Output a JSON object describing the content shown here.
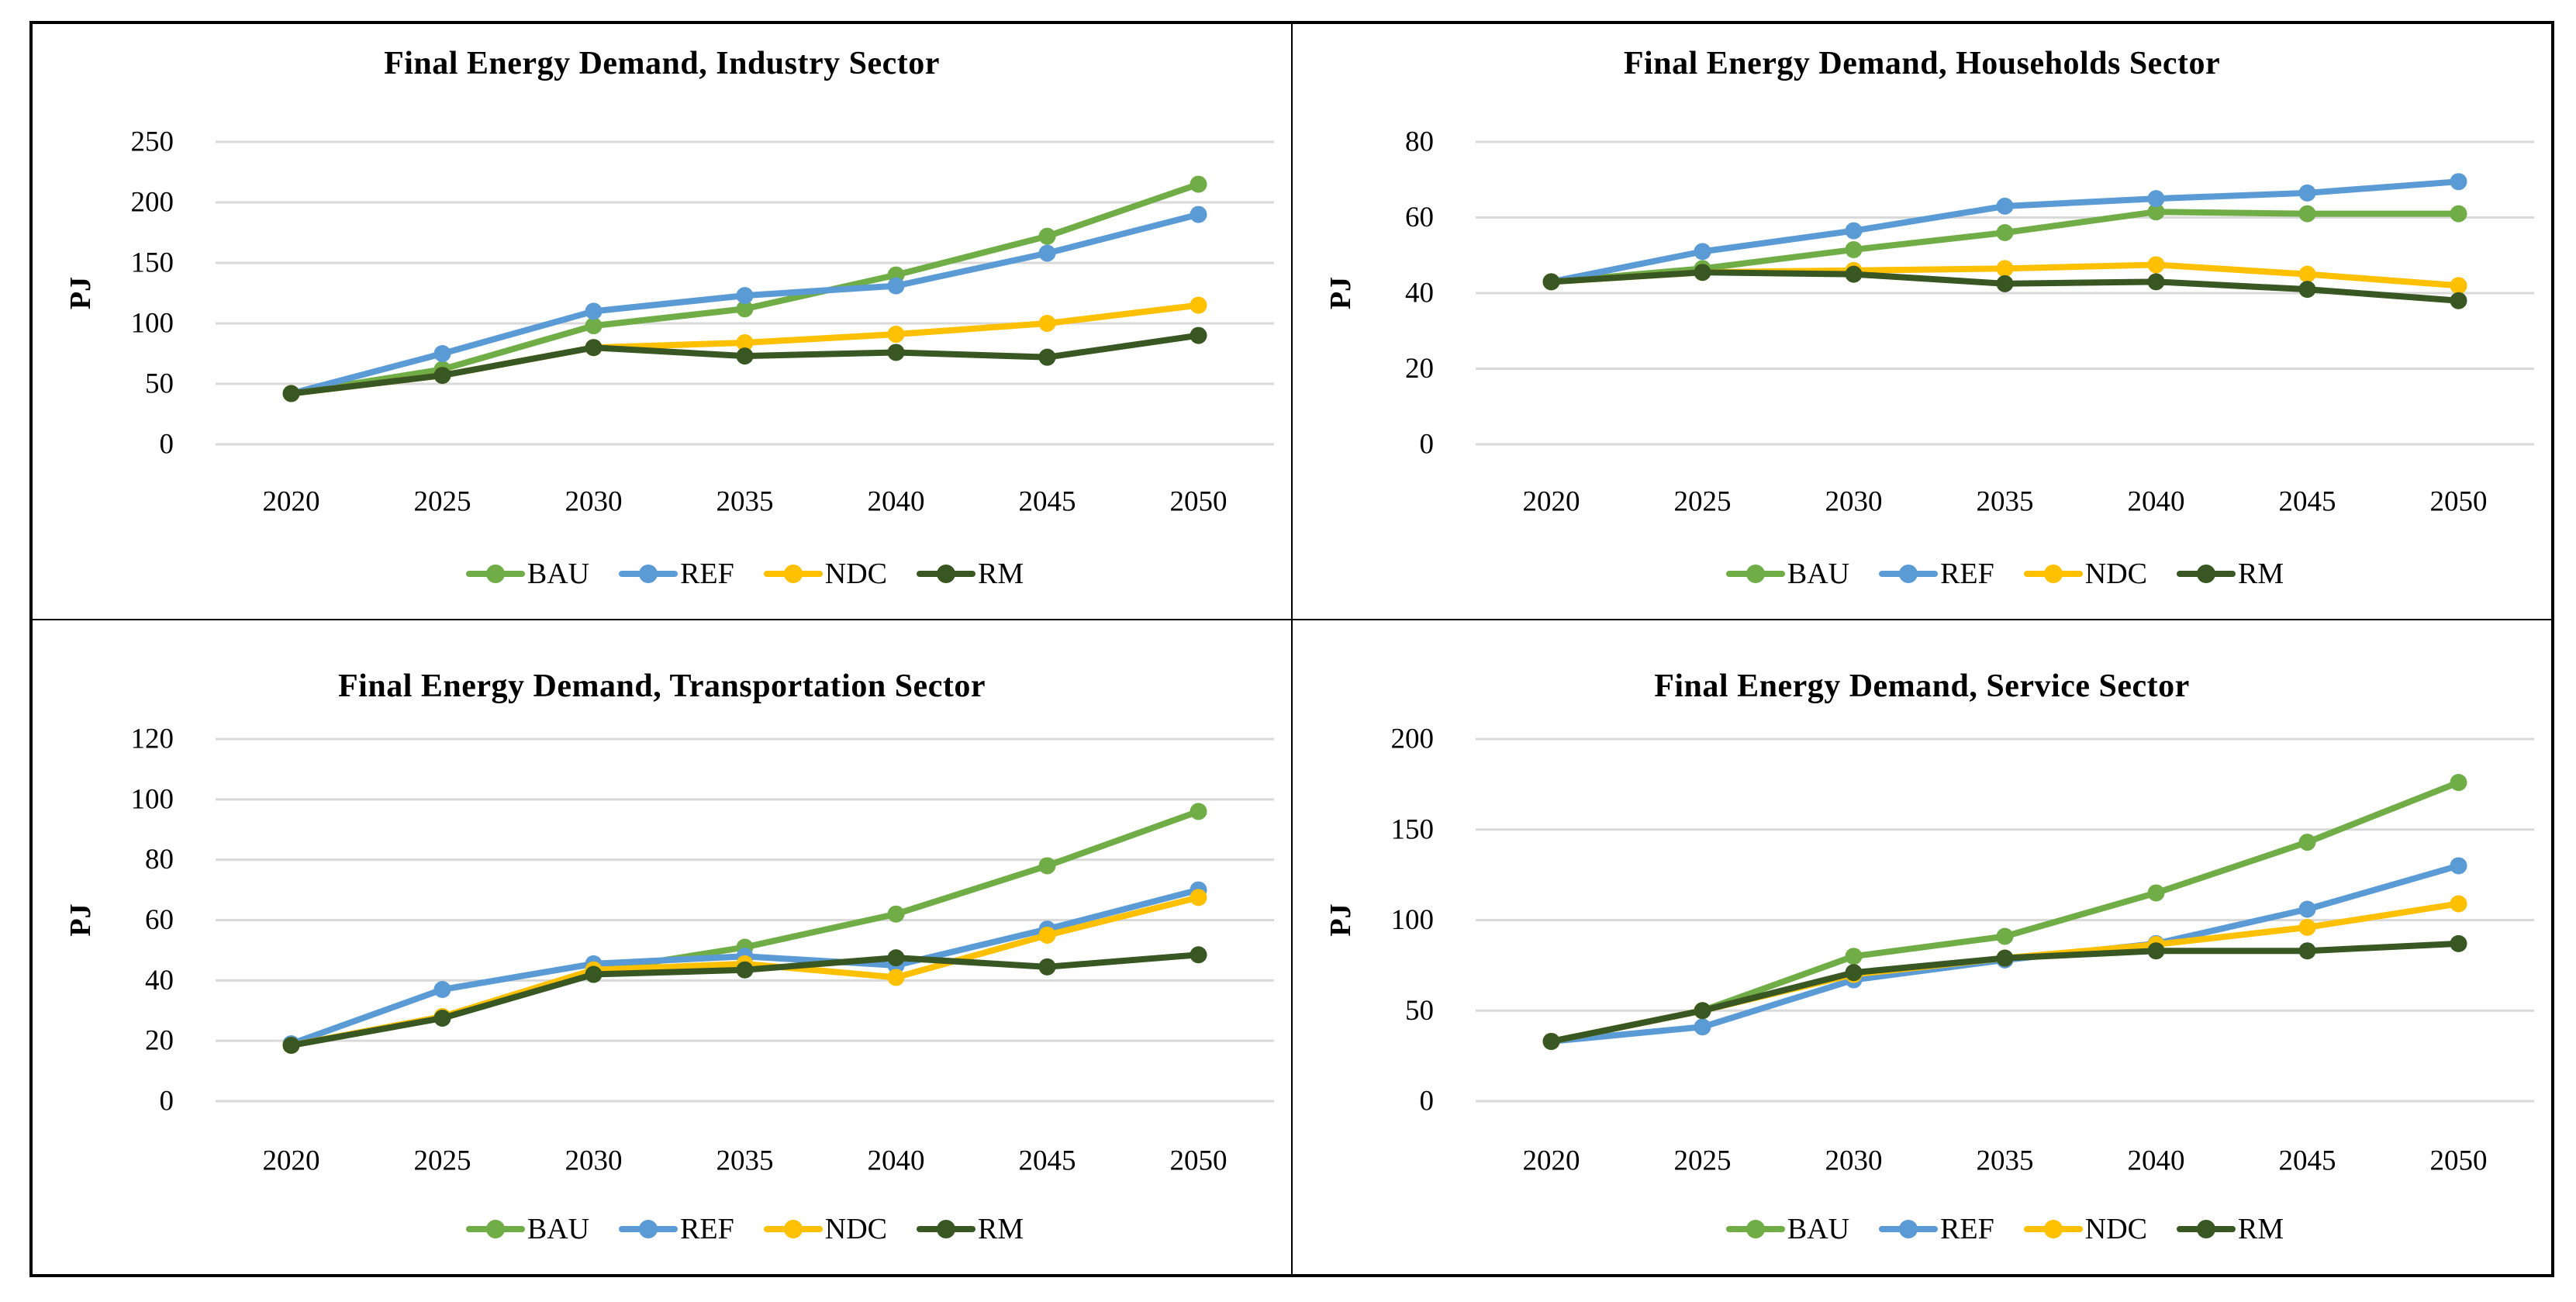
{
  "figure": {
    "background": "#ffffff",
    "border_color": "#000000",
    "gridline_color": "#D9D9D9",
    "text_color": "#000000",
    "panel_layout": "2x2"
  },
  "series_colors": {
    "BAU": "#70AD47",
    "REF": "#5B9BD5",
    "NDC": "#FFC000",
    "RM": "#385723"
  },
  "chart_data": [
    {
      "type": "line",
      "title": "Final Energy Demand, Industry Sector",
      "ylabel": "PJ",
      "categories": [
        "2020",
        "2025",
        "2030",
        "2035",
        "2040",
        "2045",
        "2050"
      ],
      "yticks": [
        0,
        50,
        100,
        150,
        200,
        250
      ],
      "ylim": [
        0,
        250
      ],
      "grid": true,
      "legend_position": "bottom",
      "series": [
        {
          "name": "BAU",
          "color": "#70AD47",
          "values": [
            42,
            62,
            98,
            112,
            140,
            172,
            215
          ]
        },
        {
          "name": "REF",
          "color": "#5B9BD5",
          "values": [
            42,
            75,
            110,
            123,
            131,
            158,
            190
          ]
        },
        {
          "name": "NDC",
          "color": "#FFC000",
          "values": [
            42,
            57,
            80,
            84,
            91,
            100,
            115
          ]
        },
        {
          "name": "RM",
          "color": "#385723",
          "values": [
            42,
            57,
            80,
            73,
            76,
            72,
            90
          ]
        }
      ]
    },
    {
      "type": "line",
      "title": "Final Energy Demand, Households Sector",
      "ylabel": "PJ",
      "categories": [
        "2020",
        "2025",
        "2030",
        "2035",
        "2040",
        "2045",
        "2050"
      ],
      "yticks": [
        0,
        20,
        40,
        60,
        80
      ],
      "ylim": [
        0,
        80
      ],
      "grid": true,
      "legend_position": "bottom",
      "series": [
        {
          "name": "BAU",
          "color": "#70AD47",
          "values": [
            43,
            46.5,
            51.5,
            56,
            61.5,
            61,
            61
          ]
        },
        {
          "name": "REF",
          "color": "#5B9BD5",
          "values": [
            43,
            51,
            56.5,
            63,
            65,
            66.5,
            69.5
          ]
        },
        {
          "name": "NDC",
          "color": "#FFC000",
          "values": [
            43,
            45.5,
            46,
            46.5,
            47.5,
            45,
            42
          ]
        },
        {
          "name": "RM",
          "color": "#385723",
          "values": [
            43,
            45.5,
            45,
            42.5,
            43,
            41,
            38
          ]
        }
      ]
    },
    {
      "type": "line",
      "title": "Final Energy Demand, Transportation Sector",
      "ylabel": "PJ",
      "categories": [
        "2020",
        "2025",
        "2030",
        "2035",
        "2040",
        "2045",
        "2050"
      ],
      "yticks": [
        0,
        20,
        40,
        60,
        80,
        100,
        120
      ],
      "ylim": [
        0,
        120
      ],
      "grid": true,
      "legend_position": "bottom",
      "series": [
        {
          "name": "BAU",
          "color": "#70AD47",
          "values": [
            18.5,
            28,
            43,
            51,
            62,
            78,
            96
          ]
        },
        {
          "name": "REF",
          "color": "#5B9BD5",
          "values": [
            19,
            37,
            45.5,
            48,
            45,
            57,
            70
          ]
        },
        {
          "name": "NDC",
          "color": "#FFC000",
          "values": [
            18.5,
            28,
            43.5,
            45.5,
            41,
            55,
            67.5
          ]
        },
        {
          "name": "RM",
          "color": "#385723",
          "values": [
            18.5,
            27.5,
            42,
            43.5,
            47.5,
            44.5,
            48.5
          ]
        }
      ]
    },
    {
      "type": "line",
      "title": "Final Energy Demand, Service Sector",
      "ylabel": "PJ",
      "categories": [
        "2020",
        "2025",
        "2030",
        "2035",
        "2040",
        "2045",
        "2050"
      ],
      "yticks": [
        0,
        50,
        100,
        150,
        200
      ],
      "ylim": [
        0,
        200
      ],
      "grid": true,
      "legend_position": "bottom",
      "series": [
        {
          "name": "BAU",
          "color": "#70AD47",
          "values": [
            33,
            50,
            80,
            91,
            115,
            143,
            176
          ]
        },
        {
          "name": "REF",
          "color": "#5B9BD5",
          "values": [
            33,
            41,
            67,
            78,
            87,
            106,
            130
          ]
        },
        {
          "name": "NDC",
          "color": "#FFC000",
          "values": [
            33,
            50,
            70,
            79,
            86.5,
            96,
            109
          ]
        },
        {
          "name": "RM",
          "color": "#385723",
          "values": [
            33,
            50,
            71,
            79,
            83,
            83,
            87
          ]
        }
      ]
    }
  ]
}
